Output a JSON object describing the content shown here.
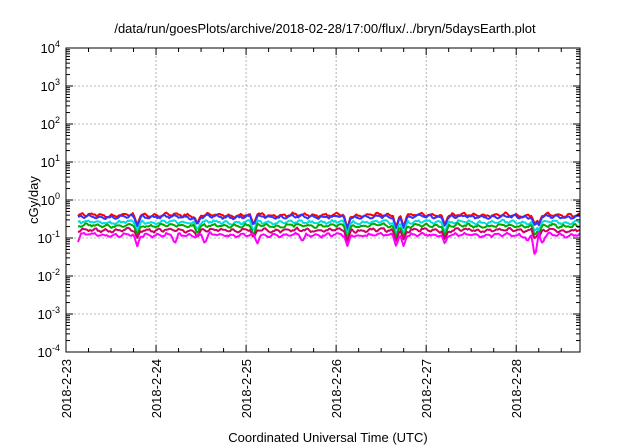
{
  "chart_data": {
    "type": "line",
    "title": "/data/run/goesPlots/archive/2018-02-28/17:00/flux/../bryn/5daysEarth.plot",
    "xlabel": "Coordinated Universal Time (UTC)",
    "ylabel": "cGy/day",
    "x_ticks": [
      "2018-2-23",
      "2018-2-24",
      "2018-2-25",
      "2018-2-26",
      "2018-2-27",
      "2018-2-28"
    ],
    "x_range": [
      "2018-2-23 00:00",
      "2018-2-28 17:00"
    ],
    "y_scale": "log",
    "ylim": [
      0.0001,
      10000
    ],
    "y_ticks": [
      {
        "base": "10",
        "exp": "4"
      },
      {
        "base": "10",
        "exp": "3"
      },
      {
        "base": "10",
        "exp": "2"
      },
      {
        "base": "10",
        "exp": "1"
      },
      {
        "base": "10",
        "exp": "0"
      },
      {
        "base": "10",
        "exp": "-1"
      },
      {
        "base": "10",
        "exp": "-2"
      },
      {
        "base": "10",
        "exp": "-3"
      },
      {
        "base": "10",
        "exp": "-4"
      }
    ],
    "grid": true,
    "series": [
      {
        "color": "#ff0000",
        "base": 0.4,
        "dips": [
          [
            "2018-2-23 19:00",
            0.22
          ],
          [
            "2018-2-24 11:00",
            0.24
          ],
          [
            "2018-2-25 02:00",
            0.23
          ],
          [
            "2018-2-26 03:00",
            0.18
          ],
          [
            "2018-2-26 16:00",
            0.19
          ],
          [
            "2018-2-26 18:00",
            0.2
          ],
          [
            "2018-2-27 05:00",
            0.22
          ],
          [
            "2018-2-28 05:00",
            0.22
          ],
          [
            "2018-2-28 06:00",
            0.23
          ]
        ]
      },
      {
        "color": "#3333ff",
        "base": 0.36,
        "dips": [
          [
            "2018-2-23 19:00",
            0.2
          ],
          [
            "2018-2-24 11:00",
            0.22
          ],
          [
            "2018-2-25 02:00",
            0.21
          ],
          [
            "2018-2-26 03:00",
            0.16
          ],
          [
            "2018-2-26 16:00",
            0.17
          ],
          [
            "2018-2-26 18:00",
            0.18
          ],
          [
            "2018-2-27 05:00",
            0.2
          ],
          [
            "2018-2-28 05:00",
            0.2
          ],
          [
            "2018-2-28 06:00",
            0.21
          ]
        ]
      },
      {
        "color": "#00dddd",
        "base": 0.26,
        "dips": [
          [
            "2018-2-23 19:00",
            0.15
          ],
          [
            "2018-2-24 11:00",
            0.16
          ],
          [
            "2018-2-25 02:00",
            0.15
          ],
          [
            "2018-2-26 03:00",
            0.12
          ],
          [
            "2018-2-26 16:00",
            0.12
          ],
          [
            "2018-2-26 18:00",
            0.13
          ],
          [
            "2018-2-27 05:00",
            0.14
          ],
          [
            "2018-2-28 05:00",
            0.14
          ],
          [
            "2018-2-28 06:00",
            0.15
          ]
        ]
      },
      {
        "color": "#00aa00",
        "base": 0.21,
        "dips": [
          [
            "2018-2-23 19:00",
            0.12
          ],
          [
            "2018-2-24 11:00",
            0.13
          ],
          [
            "2018-2-25 02:00",
            0.12
          ],
          [
            "2018-2-26 03:00",
            0.09
          ],
          [
            "2018-2-26 16:00",
            0.1
          ],
          [
            "2018-2-26 18:00",
            0.1
          ],
          [
            "2018-2-27 05:00",
            0.11
          ],
          [
            "2018-2-28 05:00",
            0.11
          ],
          [
            "2018-2-28 06:00",
            0.12
          ]
        ]
      },
      {
        "color": "#cc0066",
        "base": 0.16,
        "dips": [
          [
            "2018-2-23 19:00",
            0.1
          ],
          [
            "2018-2-24 11:00",
            0.1
          ],
          [
            "2018-2-25 02:00",
            0.1
          ],
          [
            "2018-2-26 03:00",
            0.08
          ],
          [
            "2018-2-26 16:00",
            0.08
          ],
          [
            "2018-2-26 18:00",
            0.09
          ],
          [
            "2018-2-27 05:00",
            0.09
          ],
          [
            "2018-2-28 05:00",
            0.09
          ],
          [
            "2018-2-28 06:00",
            0.1
          ]
        ]
      },
      {
        "color": "#ff00ff",
        "base": 0.12,
        "dips": [
          [
            "2018-2-23 03:00",
            0.07
          ],
          [
            "2018-2-23 19:00",
            0.06
          ],
          [
            "2018-2-24 05:00",
            0.07
          ],
          [
            "2018-2-24 13:00",
            0.07
          ],
          [
            "2018-2-25 03:00",
            0.07
          ],
          [
            "2018-2-25 15:00",
            0.08
          ],
          [
            "2018-2-26 03:00",
            0.06
          ],
          [
            "2018-2-26 16:00",
            0.06
          ],
          [
            "2018-2-26 18:00",
            0.06
          ],
          [
            "2018-2-27 05:00",
            0.07
          ],
          [
            "2018-2-28 03:00",
            0.08
          ],
          [
            "2018-2-28 05:00",
            0.03
          ],
          [
            "2018-2-28 07:00",
            0.07
          ]
        ]
      }
    ]
  }
}
